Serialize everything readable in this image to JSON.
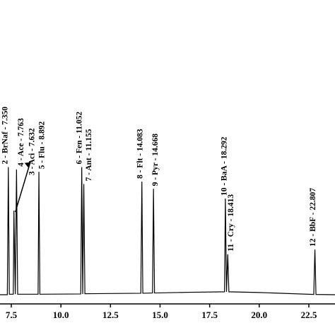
{
  "chart_data": {
    "type": "chromatogram",
    "x": [
      6.93,
      7.3,
      7.35,
      7.4,
      7.6,
      7.632,
      7.7,
      7.763,
      7.82,
      8.85,
      8.892,
      8.94,
      11.0,
      11.052,
      11.1,
      11.155,
      11.21,
      14.03,
      14.083,
      14.13,
      14.62,
      14.668,
      14.72,
      16.5,
      18.25,
      18.292,
      18.35,
      18.413,
      18.47,
      20.0,
      22.75,
      22.807,
      22.86,
      23.82
    ],
    "values": [
      0.3,
      0.3,
      53,
      0.5,
      0.5,
      35,
      0.5,
      52,
      0.5,
      0.5,
      51,
      0.5,
      0.6,
      53,
      0.6,
      46,
      0.7,
      0.9,
      47,
      0.9,
      1.0,
      44,
      1.0,
      1.3,
      1.5,
      40,
      1.5,
      17,
      1.5,
      1.2,
      0.4,
      19,
      0.4,
      0.3
    ],
    "color": "#000000",
    "peaks": [
      {
        "label": "2 - BrNaf - 7.350",
        "x": 7.35,
        "height": 53
      },
      {
        "label": "3 - Aci - 7.632",
        "x": 7.632,
        "height": 35
      },
      {
        "label": "4 - Ace - 7.763",
        "x": 7.763,
        "height": 52
      },
      {
        "label": "5 - Flu - 8.892",
        "x": 8.892,
        "height": 51
      },
      {
        "label": "6 - Fen - 11.052",
        "x": 11.052,
        "height": 53
      },
      {
        "label": "7 - Ant - 11.155",
        "x": 11.155,
        "height": 46
      },
      {
        "label": "8 - Flt - 14.083",
        "x": 14.083,
        "height": 47
      },
      {
        "label": "9 - Pyr - 14.668",
        "x": 14.668,
        "height": 44
      },
      {
        "label": "10 - BaA - 18.292",
        "x": 18.292,
        "height": 40
      },
      {
        "label": "11 - Cry - 18.413",
        "x": 18.413,
        "height": 17
      },
      {
        "label": "12 - BbF - 22.807",
        "x": 22.807,
        "height": 19
      }
    ],
    "xlim": [
      6.93,
      23.82
    ],
    "ylim": [
      0,
      100
    ],
    "xticks": [
      7.5,
      {
        "value": 10,
        "label": "10.0"
      },
      12.5,
      {
        "value": 15,
        "label": "15.0"
      },
      17.5,
      {
        "value": 20,
        "label": "20.0"
      },
      22.5
    ]
  }
}
